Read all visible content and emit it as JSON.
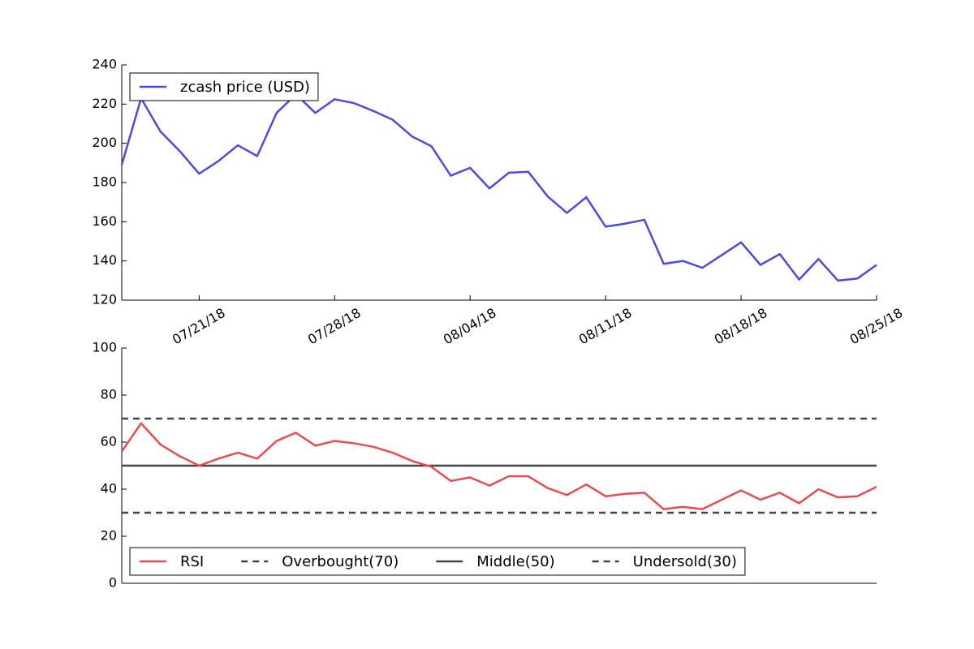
{
  "chart_data": [
    {
      "type": "line",
      "x": [
        "2018-07-17",
        "2018-07-18",
        "2018-07-19",
        "2018-07-20",
        "2018-07-21",
        "2018-07-22",
        "2018-07-23",
        "2018-07-24",
        "2018-07-25",
        "2018-07-26",
        "2018-07-27",
        "2018-07-28",
        "2018-07-29",
        "2018-07-30",
        "2018-07-31",
        "2018-08-01",
        "2018-08-02",
        "2018-08-03",
        "2018-08-04",
        "2018-08-05",
        "2018-08-06",
        "2018-08-07",
        "2018-08-08",
        "2018-08-09",
        "2018-08-10",
        "2018-08-11",
        "2018-08-12",
        "2018-08-13",
        "2018-08-14",
        "2018-08-15",
        "2018-08-16",
        "2018-08-17",
        "2018-08-18",
        "2018-08-19",
        "2018-08-20",
        "2018-08-21",
        "2018-08-22",
        "2018-08-23",
        "2018-08-24",
        "2018-08-25"
      ],
      "series": [
        {
          "name": "zcash price (USD)",
          "color": "#4b4be0",
          "values": [
            189,
            223,
            206,
            196,
            184.5,
            191,
            199,
            193.5,
            215.5,
            225,
            215.5,
            222.5,
            220.5,
            216.5,
            212,
            203.5,
            198.5,
            183.5,
            187.5,
            177,
            185,
            185.5,
            173,
            164.5,
            172.5,
            157.5,
            159,
            161,
            138.5,
            140,
            136.5,
            143,
            149.5,
            138,
            143.5,
            130.5,
            141,
            130,
            131,
            138
          ]
        }
      ],
      "xlim": [
        "2018-07-17",
        "2018-08-25"
      ],
      "xticks": [
        {
          "value": "2018-07-21",
          "label": "07/21/18"
        },
        {
          "value": "2018-07-28",
          "label": "07/28/18"
        },
        {
          "value": "2018-08-04",
          "label": "08/04/18"
        },
        {
          "value": "2018-08-11",
          "label": "08/11/18"
        },
        {
          "value": "2018-08-18",
          "label": "08/18/18"
        },
        {
          "value": "2018-08-25",
          "label": "08/25/18"
        }
      ],
      "ylim": [
        120,
        240
      ],
      "yticks": [
        120,
        140,
        160,
        180,
        200,
        220,
        240
      ],
      "legend": "upper left"
    },
    {
      "type": "line",
      "x": [
        "2018-07-17",
        "2018-07-18",
        "2018-07-19",
        "2018-07-20",
        "2018-07-21",
        "2018-07-22",
        "2018-07-23",
        "2018-07-24",
        "2018-07-25",
        "2018-07-26",
        "2018-07-27",
        "2018-07-28",
        "2018-07-29",
        "2018-07-30",
        "2018-07-31",
        "2018-08-01",
        "2018-08-02",
        "2018-08-03",
        "2018-08-04",
        "2018-08-05",
        "2018-08-06",
        "2018-08-07",
        "2018-08-08",
        "2018-08-09",
        "2018-08-10",
        "2018-08-11",
        "2018-08-12",
        "2018-08-13",
        "2018-08-14",
        "2018-08-15",
        "2018-08-16",
        "2018-08-17",
        "2018-08-18",
        "2018-08-19",
        "2018-08-20",
        "2018-08-21",
        "2018-08-22",
        "2018-08-23",
        "2018-08-24",
        "2018-08-25"
      ],
      "series": [
        {
          "name": "RSI",
          "color": "#e84c4c",
          "values": [
            56,
            68,
            59,
            54,
            50,
            53,
            55.5,
            53,
            60.5,
            64,
            58.5,
            60.5,
            59.5,
            58,
            55.5,
            52,
            49.5,
            43.5,
            45,
            41.5,
            45.5,
            45.5,
            40.5,
            37.5,
            42,
            37,
            38,
            38.5,
            31.5,
            32.5,
            31.5,
            35.5,
            39.5,
            35.5,
            38.5,
            34,
            40,
            36.5,
            37,
            41
          ]
        }
      ],
      "hlines": [
        {
          "name": "Overbought(70)",
          "value": 70,
          "color": "#444444",
          "style": "dashed"
        },
        {
          "name": "Middle(50)",
          "value": 50,
          "color": "#444444",
          "style": "solid"
        },
        {
          "name": "Undersold(30)",
          "value": 30,
          "color": "#444444",
          "style": "dashed"
        }
      ],
      "xlim": [
        "2018-07-17",
        "2018-08-25"
      ],
      "ylim": [
        0,
        100
      ],
      "yticks": [
        0,
        20,
        40,
        60,
        80,
        100
      ],
      "legend": "lower left"
    }
  ]
}
